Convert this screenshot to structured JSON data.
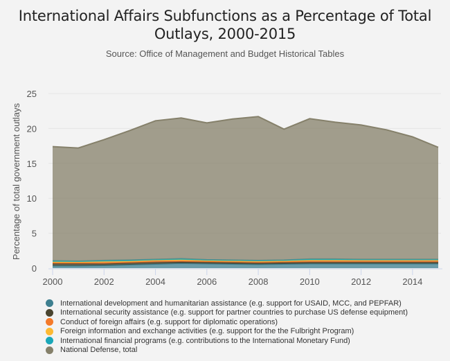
{
  "chart_data": {
    "type": "area",
    "stacked": true,
    "title": "International Affairs Subfunctions as a Percentage of Total Outlays, 2000-2015",
    "title_lines": [
      "International Affairs Subfunctions as a Percentage of Total",
      "Outlays, 2000-2015"
    ],
    "subtitle": "Source: Office of Management and Budget Historical Tables",
    "xlabel": "",
    "ylabel": "Percentage of total government outlays",
    "x": [
      2000,
      2001,
      2002,
      2003,
      2004,
      2005,
      2006,
      2007,
      2008,
      2009,
      2010,
      2011,
      2012,
      2013,
      2014,
      2015
    ],
    "xticks": [
      "2000",
      "2002",
      "2004",
      "2006",
      "2008",
      "2010",
      "2012",
      "2014"
    ],
    "xtick_values": [
      2000,
      2002,
      2004,
      2006,
      2008,
      2010,
      2012,
      2014
    ],
    "yticks": [
      "0",
      "5",
      "10",
      "15",
      "20",
      "25"
    ],
    "ytick_values": [
      0,
      5,
      10,
      15,
      20,
      25
    ],
    "ylim": [
      0,
      25
    ],
    "xlim": [
      2000,
      2015
    ],
    "grid": true,
    "legend_position": "bottom",
    "series": [
      {
        "name": "International development and humanitarian assistance (e.g. support for USAID, MCC, and PEPFAR)",
        "color": "#3e7f8f",
        "values": [
          0.35,
          0.35,
          0.4,
          0.5,
          0.6,
          0.7,
          0.65,
          0.6,
          0.55,
          0.6,
          0.65,
          0.65,
          0.65,
          0.65,
          0.65,
          0.65
        ]
      },
      {
        "name": "International security assistance (e.g. support for partner countries to purchase US defense equipment)",
        "color": "#4a4530",
        "values": [
          0.3,
          0.3,
          0.25,
          0.25,
          0.25,
          0.2,
          0.2,
          0.2,
          0.2,
          0.2,
          0.2,
          0.2,
          0.2,
          0.2,
          0.2,
          0.2
        ]
      },
      {
        "name": "Conduct of foreign affairs (e.g. support for diplomatic operations)",
        "color": "#f47a2a",
        "values": [
          0.2,
          0.2,
          0.25,
          0.2,
          0.25,
          0.25,
          0.2,
          0.2,
          0.2,
          0.2,
          0.25,
          0.25,
          0.25,
          0.25,
          0.25,
          0.25
        ]
      },
      {
        "name": "Foreign information and exchange activities (e.g. support for the the Fulbright Program)",
        "color": "#fdb933",
        "values": [
          0.05,
          0.05,
          0.05,
          0.05,
          0.05,
          0.05,
          0.05,
          0.05,
          0.05,
          0.05,
          0.05,
          0.05,
          0.05,
          0.05,
          0.05,
          0.05
        ]
      },
      {
        "name": "International financial programs (e.g. contributions to the International Monetary Fund)",
        "color": "#1aa7b8",
        "values": [
          0.15,
          0.1,
          0.15,
          0.15,
          0.1,
          0.15,
          0.1,
          0.1,
          0.1,
          0.1,
          0.15,
          0.15,
          0.1,
          0.1,
          0.1,
          0.1
        ]
      },
      {
        "name": "National Defense, total",
        "color": "#85806a",
        "values": [
          16.35,
          16.2,
          17.3,
          18.55,
          19.85,
          20.15,
          19.6,
          20.2,
          20.6,
          18.75,
          20.1,
          19.6,
          19.25,
          18.55,
          17.55,
          16.05
        ]
      }
    ]
  }
}
